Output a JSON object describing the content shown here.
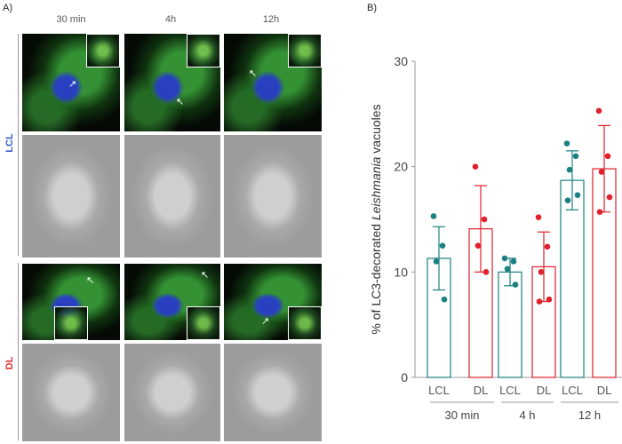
{
  "panel_a": {
    "label": "A)",
    "columns": [
      "30 min",
      "4h",
      "12h"
    ],
    "rows": [
      {
        "label": "LCL",
        "color": "#3a5fcd"
      },
      {
        "label": "DL",
        "color": "#e03030"
      }
    ]
  },
  "panel_b": {
    "label": "B)"
  },
  "chart_data": {
    "type": "bar",
    "categories": [
      "LCL",
      "DL",
      "LCL",
      "DL",
      "LCL",
      "DL"
    ],
    "groups": [
      "30 min",
      "4 h",
      "12 h"
    ],
    "ylabel_pre": "% of LC3-decorated ",
    "ylabel_italic": "Leishmania",
    "ylabel_post": " vacuoles",
    "ylim": [
      0,
      30
    ],
    "yticks": [
      "0",
      "10",
      "20",
      "30"
    ],
    "bar_colors": [
      "#1a8080",
      "#e0202a",
      "#1a8080",
      "#e0202a",
      "#1a8080",
      "#e0202a"
    ],
    "values": [
      11.3,
      14.1,
      10.0,
      10.5,
      18.7,
      19.8
    ],
    "errors": [
      3.0,
      4.1,
      1.3,
      3.3,
      2.8,
      4.1
    ],
    "points": [
      [
        15.3,
        12.5,
        11.0,
        7.4
      ],
      [
        20.0,
        15.0,
        12.5,
        10.0
      ],
      [
        11.3,
        11.0,
        10.3,
        8.8
      ],
      [
        15.2,
        12.4,
        10.0,
        7.4,
        7.2
      ],
      [
        22.2,
        21.0,
        19.7,
        17.3,
        16.8
      ],
      [
        25.3,
        21.0,
        19.5,
        17.1,
        15.7
      ]
    ]
  }
}
